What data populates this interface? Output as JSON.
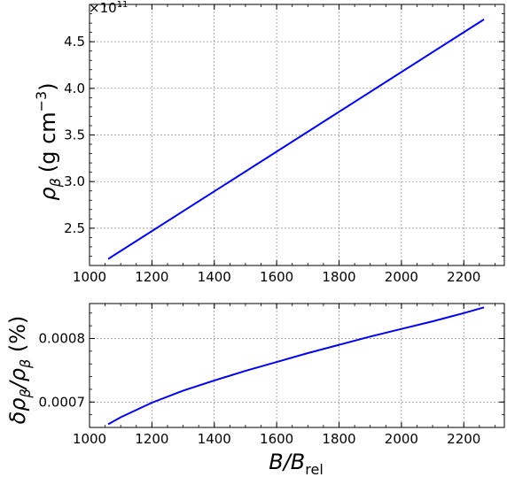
{
  "chart_data": [
    {
      "type": "line",
      "panel": "top",
      "ylabel_main": "ρ",
      "ylabel_sub": "β",
      "ylabel_unit": "(g cm",
      "ylabel_exp": "−3",
      "ylabel_close": ")",
      "offset_text": "×10",
      "offset_exp": "11",
      "x": [
        1060,
        2265
      ],
      "series": [
        {
          "values": [
            2.17,
            4.74
          ],
          "color": "#0000ee"
        }
      ],
      "xlim": [
        1000,
        2330
      ],
      "ylim": [
        2.1,
        4.9
      ],
      "xticks": [
        1000,
        1200,
        1400,
        1600,
        1800,
        2000,
        2200
      ],
      "xtick_labels": [
        "1000",
        "1200",
        "1400",
        "1600",
        "1800",
        "2000",
        "2200"
      ],
      "yticks": [
        2.5,
        3.0,
        3.5,
        4.0,
        4.5
      ],
      "ytick_labels": [
        "2.5",
        "3.0",
        "3.5",
        "4.0",
        "4.5"
      ],
      "grid": true
    },
    {
      "type": "line",
      "panel": "bottom",
      "ylabel": "δρβ/ρβ (%)",
      "ylabel_parts": [
        "δρ",
        "β",
        "/ρ",
        "β",
        " (%)"
      ],
      "xlabel_main": "B/B",
      "xlabel_sub": "rel",
      "x": [
        1060,
        1100,
        1200,
        1300,
        1400,
        1500,
        1600,
        1700,
        1800,
        1900,
        2000,
        2100,
        2200,
        2265
      ],
      "series": [
        {
          "values": [
            0.000665,
            0.000676,
            0.000699,
            0.000718,
            0.000734,
            0.000749,
            0.000763,
            0.000777,
            0.00079,
            0.000803,
            0.000815,
            0.000827,
            0.00084,
            0.000849
          ],
          "color": "#0000ee"
        }
      ],
      "xlim": [
        1000,
        2330
      ],
      "ylim": [
        0.00066,
        0.000855
      ],
      "xticks": [
        1000,
        1200,
        1400,
        1600,
        1800,
        2000,
        2200
      ],
      "xtick_labels": [
        "1000",
        "1200",
        "1400",
        "1600",
        "1800",
        "2000",
        "2200"
      ],
      "yticks": [
        0.0007,
        0.0008
      ],
      "ytick_labels": [
        "0.0007",
        "0.0008"
      ],
      "grid": true
    }
  ]
}
